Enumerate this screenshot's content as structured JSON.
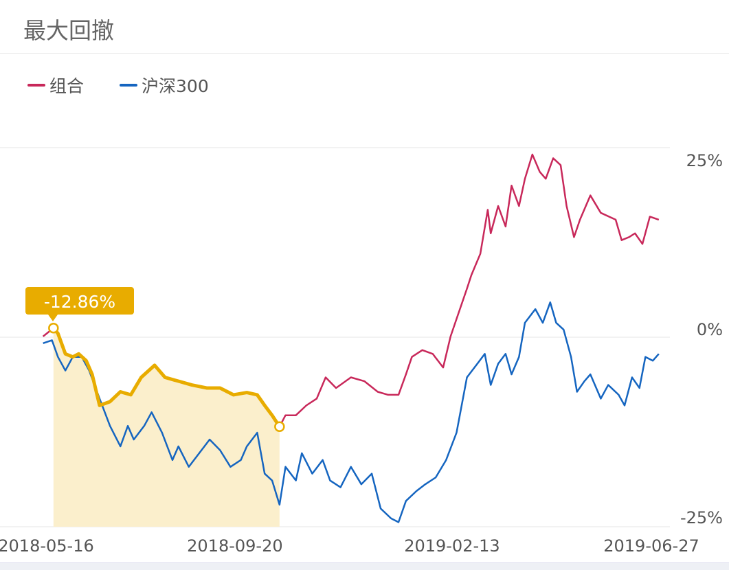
{
  "header": {
    "title": "最大回撤"
  },
  "colors": {
    "portfolio": "#c8285a",
    "csi300": "#1565c0",
    "drawdown": "#e8ac00",
    "fill": "#fbefcc",
    "grid": "#e6e6e6"
  },
  "chart_data": {
    "type": "line",
    "title": "最大回撤",
    "legend": [
      "组合",
      "沪深300"
    ],
    "legend_position": "top-left",
    "x_unit": "days since 2018-05-16",
    "x_ticks": [
      {
        "day": 0,
        "label": "2018-05-16"
      },
      {
        "day": 127,
        "label": "2018-09-20"
      },
      {
        "day": 273,
        "label": "2019-02-13"
      },
      {
        "day": 407,
        "label": "2019-06-27"
      }
    ],
    "y_ticks": [
      {
        "value": 25,
        "label": "25%"
      },
      {
        "value": 0,
        "label": "0%"
      },
      {
        "value": -25,
        "label": "-25%"
      }
    ],
    "ylim": [
      -25,
      25
    ],
    "series": [
      {
        "name": "组合",
        "x": [
          -2,
          5,
          8,
          13,
          18,
          22,
          27,
          31,
          36,
          43,
          50,
          57,
          64,
          73,
          80,
          89,
          98,
          108,
          117,
          126,
          135,
          142,
          147,
          152,
          157,
          161,
          168,
          175,
          182,
          188,
          195,
          205,
          214,
          223,
          230,
          237,
          242,
          246,
          253,
          260,
          267,
          272,
          276,
          283,
          286,
          292,
          297,
          299,
          304,
          309,
          313,
          318,
          322,
          327,
          332,
          336,
          341,
          346,
          350,
          355,
          359,
          366,
          373,
          383,
          387,
          392,
          396,
          401,
          406,
          412
        ],
        "y": [
          0.1,
          1.2,
          0.5,
          -2.2,
          -2.6,
          -2.2,
          -3.1,
          -4.9,
          -9.0,
          -8.5,
          -7.2,
          -7.6,
          -5.3,
          -3.7,
          -5.3,
          -5.8,
          -6.3,
          -6.7,
          -6.7,
          -7.6,
          -7.3,
          -7.6,
          -9.0,
          -10.3,
          -11.8,
          -10.3,
          -10.3,
          -9.0,
          -8.1,
          -5.3,
          -6.7,
          -5.3,
          -5.8,
          -7.2,
          -7.6,
          -7.6,
          -4.9,
          -2.6,
          -1.7,
          -2.2,
          -4.0,
          0.1,
          2.4,
          6.4,
          8.2,
          11.0,
          16.8,
          13.7,
          17.3,
          14.6,
          20.0,
          17.3,
          20.9,
          24.1,
          21.8,
          20.9,
          23.6,
          22.7,
          17.3,
          13.2,
          15.5,
          18.7,
          16.4,
          15.5,
          12.8,
          13.2,
          13.7,
          12.3,
          15.9,
          15.5
        ]
      },
      {
        "name": "沪深300",
        "x": [
          -2,
          4,
          8,
          13,
          18,
          24,
          29,
          36,
          43,
          50,
          55,
          59,
          66,
          71,
          78,
          85,
          89,
          96,
          103,
          110,
          117,
          124,
          131,
          135,
          142,
          147,
          152,
          157,
          161,
          168,
          172,
          179,
          186,
          191,
          198,
          205,
          212,
          219,
          225,
          232,
          237,
          242,
          249,
          255,
          262,
          269,
          276,
          283,
          290,
          295,
          299,
          304,
          309,
          313,
          318,
          322,
          329,
          334,
          339,
          343,
          348,
          353,
          357,
          362,
          366,
          373,
          378,
          385,
          389,
          394,
          399,
          403,
          408,
          412
        ],
        "y": [
          -0.8,
          -0.4,
          -2.6,
          -4.4,
          -2.6,
          -2.6,
          -4.4,
          -8.1,
          -11.7,
          -14.4,
          -11.7,
          -13.5,
          -11.7,
          -9.9,
          -12.6,
          -16.2,
          -14.4,
          -17.1,
          -15.3,
          -13.5,
          -14.9,
          -17.1,
          -16.2,
          -14.4,
          -12.6,
          -18.0,
          -18.9,
          -22.1,
          -17.1,
          -18.9,
          -15.3,
          -18.0,
          -16.2,
          -18.9,
          -19.8,
          -17.1,
          -19.4,
          -18.0,
          -22.6,
          -23.9,
          -24.4,
          -21.6,
          -20.3,
          -19.4,
          -18.5,
          -16.2,
          -12.6,
          -5.3,
          -3.5,
          -2.2,
          -6.3,
          -3.5,
          -2.2,
          -4.9,
          -2.6,
          1.9,
          3.7,
          1.9,
          4.6,
          1.9,
          1.0,
          -2.6,
          -7.2,
          -5.8,
          -4.9,
          -8.1,
          -6.3,
          -7.6,
          -9.0,
          -5.3,
          -6.7,
          -2.6,
          -3.1,
          -2.2
        ]
      }
    ],
    "max_drawdown": {
      "series": "组合",
      "start_day": 5,
      "end_day": 157,
      "label": "-12.86%"
    }
  }
}
